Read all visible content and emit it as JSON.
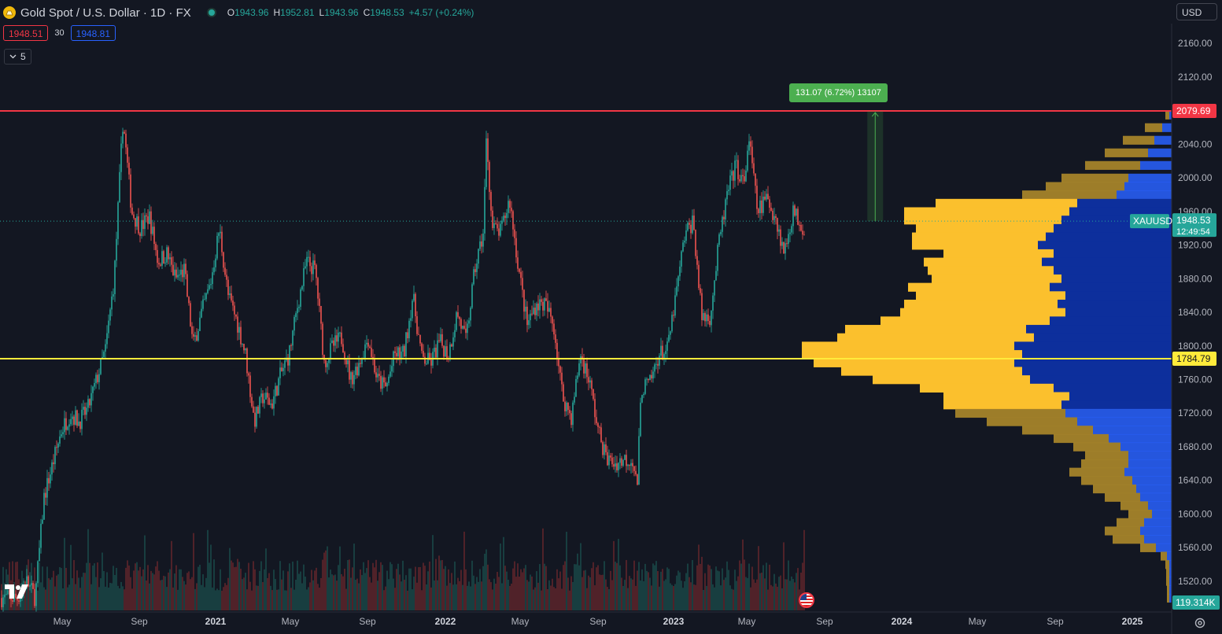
{
  "header": {
    "title": "Gold Spot / U.S. Dollar · 1D · FX",
    "ohlc": {
      "o_label": "O",
      "o": "1943.96",
      "h_label": "H",
      "h": "1952.81",
      "l_label": "L",
      "l": "1943.96",
      "c_label": "C",
      "c": "1948.53",
      "change": "+4.57 (+0.24%)"
    },
    "bid": "1948.51",
    "spread": "30",
    "ask": "1948.81",
    "indicators_collapsed": "5"
  },
  "toolbar": {
    "currency": "USD"
  },
  "measure": {
    "label": "131.07 (6.72%) 13107"
  },
  "colors": {
    "background": "#131722",
    "up": "#26a69a",
    "down": "#ef5350",
    "resistance": "#f23645",
    "support": "#ffeb3b",
    "vp_up": "#fbc02d",
    "vp_down": "#2962ff",
    "vp_va_up": "#f9c02b",
    "vp_va_down": "#0d2f9c"
  },
  "chart_data": {
    "type": "candlestick",
    "instrument": "XAUUSD",
    "timeframe": "1D",
    "x_ticks": [
      "May",
      "Sep",
      "2021",
      "May",
      "Sep",
      "2022",
      "May",
      "Sep",
      "2023",
      "May",
      "Sep",
      "2024",
      "May",
      "Sep",
      "2025"
    ],
    "y_ticks": [
      "2160.00",
      "2120.00",
      "2080.00",
      "2040.00",
      "2000.00",
      "1960.00",
      "1920.00",
      "1880.00",
      "1840.00",
      "1800.00",
      "1760.00",
      "1720.00",
      "1680.00",
      "1640.00",
      "1600.00",
      "1560.00",
      "1520.00"
    ],
    "y_range": [
      1492,
      2178
    ],
    "close_path": [
      {
        "d": "2020-02-20",
        "v": 1500
      },
      {
        "d": "2020-03-05",
        "v": 1520
      },
      {
        "d": "2020-03-19",
        "v": 1500
      },
      {
        "d": "2020-04-02",
        "v": 1620
      },
      {
        "d": "2020-04-16",
        "v": 1660
      },
      {
        "d": "2020-04-30",
        "v": 1700
      },
      {
        "d": "2020-05-14",
        "v": 1720
      },
      {
        "d": "2020-05-28",
        "v": 1710
      },
      {
        "d": "2020-06-11",
        "v": 1725
      },
      {
        "d": "2020-06-25",
        "v": 1760
      },
      {
        "d": "2020-07-09",
        "v": 1795
      },
      {
        "d": "2020-07-23",
        "v": 1880
      },
      {
        "d": "2020-08-06",
        "v": 2070
      },
      {
        "d": "2020-08-20",
        "v": 1960
      },
      {
        "d": "2020-09-03",
        "v": 1940
      },
      {
        "d": "2020-09-17",
        "v": 1955
      },
      {
        "d": "2020-10-01",
        "v": 1900
      },
      {
        "d": "2020-10-15",
        "v": 1910
      },
      {
        "d": "2020-10-29",
        "v": 1880
      },
      {
        "d": "2020-11-12",
        "v": 1890
      },
      {
        "d": "2020-11-26",
        "v": 1800
      },
      {
        "d": "2020-12-10",
        "v": 1840
      },
      {
        "d": "2020-12-24",
        "v": 1875
      },
      {
        "d": "2021-01-07",
        "v": 1940
      },
      {
        "d": "2021-01-21",
        "v": 1860
      },
      {
        "d": "2021-02-04",
        "v": 1830
      },
      {
        "d": "2021-02-18",
        "v": 1790
      },
      {
        "d": "2021-03-04",
        "v": 1710
      },
      {
        "d": "2021-03-18",
        "v": 1740
      },
      {
        "d": "2021-04-01",
        "v": 1730
      },
      {
        "d": "2021-04-15",
        "v": 1765
      },
      {
        "d": "2021-04-29",
        "v": 1790
      },
      {
        "d": "2021-05-13",
        "v": 1850
      },
      {
        "d": "2021-05-27",
        "v": 1900
      },
      {
        "d": "2021-06-10",
        "v": 1890
      },
      {
        "d": "2021-06-24",
        "v": 1780
      },
      {
        "d": "2021-07-08",
        "v": 1800
      },
      {
        "d": "2021-07-22",
        "v": 1810
      },
      {
        "d": "2021-08-05",
        "v": 1760
      },
      {
        "d": "2021-08-19",
        "v": 1780
      },
      {
        "d": "2021-09-02",
        "v": 1810
      },
      {
        "d": "2021-09-16",
        "v": 1760
      },
      {
        "d": "2021-09-30",
        "v": 1750
      },
      {
        "d": "2021-10-14",
        "v": 1790
      },
      {
        "d": "2021-10-28",
        "v": 1790
      },
      {
        "d": "2021-11-11",
        "v": 1860
      },
      {
        "d": "2021-11-25",
        "v": 1785
      },
      {
        "d": "2021-12-09",
        "v": 1780
      },
      {
        "d": "2021-12-23",
        "v": 1805
      },
      {
        "d": "2022-01-06",
        "v": 1790
      },
      {
        "d": "2022-01-20",
        "v": 1840
      },
      {
        "d": "2022-02-03",
        "v": 1805
      },
      {
        "d": "2022-02-17",
        "v": 1890
      },
      {
        "d": "2022-03-03",
        "v": 1935
      },
      {
        "d": "2022-03-08",
        "v": 2050
      },
      {
        "d": "2022-03-17",
        "v": 1940
      },
      {
        "d": "2022-03-31",
        "v": 1935
      },
      {
        "d": "2022-04-14",
        "v": 1975
      },
      {
        "d": "2022-04-28",
        "v": 1895
      },
      {
        "d": "2022-05-12",
        "v": 1825
      },
      {
        "d": "2022-05-26",
        "v": 1850
      },
      {
        "d": "2022-06-09",
        "v": 1850
      },
      {
        "d": "2022-06-23",
        "v": 1825
      },
      {
        "d": "2022-07-07",
        "v": 1740
      },
      {
        "d": "2022-07-21",
        "v": 1715
      },
      {
        "d": "2022-08-04",
        "v": 1790
      },
      {
        "d": "2022-08-18",
        "v": 1760
      },
      {
        "d": "2022-09-01",
        "v": 1700
      },
      {
        "d": "2022-09-15",
        "v": 1665
      },
      {
        "d": "2022-09-29",
        "v": 1660
      },
      {
        "d": "2022-10-13",
        "v": 1665
      },
      {
        "d": "2022-10-27",
        "v": 1665
      },
      {
        "d": "2022-11-03",
        "v": 1630
      },
      {
        "d": "2022-11-10",
        "v": 1750
      },
      {
        "d": "2022-11-24",
        "v": 1755
      },
      {
        "d": "2022-12-08",
        "v": 1790
      },
      {
        "d": "2022-12-22",
        "v": 1795
      },
      {
        "d": "2023-01-05",
        "v": 1860
      },
      {
        "d": "2023-01-19",
        "v": 1930
      },
      {
        "d": "2023-02-02",
        "v": 1950
      },
      {
        "d": "2023-02-16",
        "v": 1835
      },
      {
        "d": "2023-03-02",
        "v": 1835
      },
      {
        "d": "2023-03-16",
        "v": 1920
      },
      {
        "d": "2023-03-30",
        "v": 1980
      },
      {
        "d": "2023-04-13",
        "v": 2015
      },
      {
        "d": "2023-04-27",
        "v": 1990
      },
      {
        "d": "2023-05-04",
        "v": 2050
      },
      {
        "d": "2023-05-18",
        "v": 1960
      },
      {
        "d": "2023-06-01",
        "v": 1975
      },
      {
        "d": "2023-06-15",
        "v": 1955
      },
      {
        "d": "2023-06-29",
        "v": 1910
      },
      {
        "d": "2023-07-13",
        "v": 1960
      },
      {
        "d": "2023-07-27",
        "v": 1945
      },
      {
        "d": "2023-08-10",
        "v": 1913
      },
      {
        "d": "2023-08-24",
        "v": 1915
      },
      {
        "d": "2023-09-07",
        "v": 1920
      },
      {
        "d": "2023-09-21",
        "v": 1920
      },
      {
        "d": "2023-10-05",
        "v": 1820
      },
      {
        "d": "2023-10-19",
        "v": 1975
      },
      {
        "d": "2023-10-27",
        "v": 1985
      },
      {
        "d": "2023-11-02",
        "v": 1948.53
      }
    ],
    "levels": [
      {
        "name": "resistance",
        "value": "2079.69"
      },
      {
        "name": "support",
        "value": "1784.79"
      }
    ],
    "last_price": {
      "symbol": "XAUUSD",
      "value": "1948.53",
      "countdown": "12:49:54"
    },
    "volume_label": "119.314K",
    "measure": {
      "from": 1948.53,
      "to": 2079.6,
      "date": "2023-11-20"
    },
    "volume_profile": {
      "value_area": [
        1730,
        1975
      ],
      "poc": 1784.79,
      "rows": [
        {
          "p": 2075,
          "up": 5,
          "down": 3
        },
        {
          "p": 2060,
          "up": 22,
          "down": 12
        },
        {
          "p": 2045,
          "up": 40,
          "down": 22
        },
        {
          "p": 2030,
          "up": 55,
          "down": 30
        },
        {
          "p": 2015,
          "up": 70,
          "down": 40
        },
        {
          "p": 2000,
          "up": 85,
          "down": 55
        },
        {
          "p": 1990,
          "up": 100,
          "down": 60
        },
        {
          "p": 1980,
          "up": 120,
          "down": 70
        },
        {
          "p": 1970,
          "up": 180,
          "down": 120
        },
        {
          "p": 1960,
          "up": 210,
          "down": 130
        },
        {
          "p": 1950,
          "up": 200,
          "down": 140
        },
        {
          "p": 1940,
          "up": 175,
          "down": 150
        },
        {
          "p": 1930,
          "up": 170,
          "down": 160
        },
        {
          "p": 1920,
          "up": 160,
          "down": 170
        },
        {
          "p": 1910,
          "up": 140,
          "down": 150
        },
        {
          "p": 1900,
          "up": 150,
          "down": 165
        },
        {
          "p": 1890,
          "up": 160,
          "down": 150
        },
        {
          "p": 1880,
          "up": 165,
          "down": 140
        },
        {
          "p": 1870,
          "up": 180,
          "down": 155
        },
        {
          "p": 1860,
          "up": 190,
          "down": 135
        },
        {
          "p": 1850,
          "up": 195,
          "down": 145
        },
        {
          "p": 1840,
          "up": 210,
          "down": 135
        },
        {
          "p": 1830,
          "up": 215,
          "down": 155
        },
        {
          "p": 1820,
          "up": 230,
          "down": 185
        },
        {
          "p": 1810,
          "up": 250,
          "down": 175
        },
        {
          "p": 1800,
          "up": 270,
          "down": 200
        },
        {
          "p": 1790,
          "up": 280,
          "down": 190
        },
        {
          "p": 1780,
          "up": 255,
          "down": 200
        },
        {
          "p": 1770,
          "up": 230,
          "down": 190
        },
        {
          "p": 1760,
          "up": 200,
          "down": 180
        },
        {
          "p": 1750,
          "up": 170,
          "down": 150
        },
        {
          "p": 1740,
          "up": 160,
          "down": 130
        },
        {
          "p": 1730,
          "up": 150,
          "down": 140
        },
        {
          "p": 1720,
          "up": 140,
          "down": 135
        },
        {
          "p": 1710,
          "up": 115,
          "down": 120
        },
        {
          "p": 1700,
          "up": 90,
          "down": 100
        },
        {
          "p": 1690,
          "up": 70,
          "down": 80
        },
        {
          "p": 1680,
          "up": 60,
          "down": 65
        },
        {
          "p": 1670,
          "up": 55,
          "down": 55
        },
        {
          "p": 1660,
          "up": 60,
          "down": 55
        },
        {
          "p": 1650,
          "up": 70,
          "down": 60
        },
        {
          "p": 1640,
          "up": 65,
          "down": 50
        },
        {
          "p": 1630,
          "up": 55,
          "down": 45
        },
        {
          "p": 1620,
          "up": 45,
          "down": 40
        },
        {
          "p": 1610,
          "up": 35,
          "down": 30
        },
        {
          "p": 1600,
          "up": 30,
          "down": 25
        },
        {
          "p": 1590,
          "up": 35,
          "down": 35
        },
        {
          "p": 1580,
          "up": 45,
          "down": 40
        },
        {
          "p": 1570,
          "up": 40,
          "down": 35
        },
        {
          "p": 1560,
          "up": 20,
          "down": 20
        },
        {
          "p": 1550,
          "up": 8,
          "down": 6
        },
        {
          "p": 1540,
          "up": 5,
          "down": 3
        },
        {
          "p": 1530,
          "up": 4,
          "down": 3
        },
        {
          "p": 1520,
          "up": 4,
          "down": 3
        },
        {
          "p": 1510,
          "up": 3,
          "down": 3
        },
        {
          "p": 1500,
          "up": 3,
          "down": 3
        }
      ]
    }
  }
}
